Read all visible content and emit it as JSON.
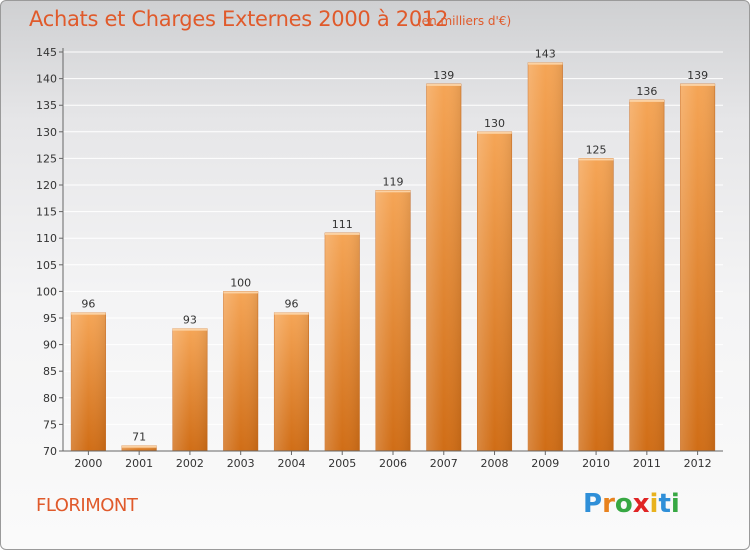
{
  "title": "Achats et Charges Externes 2000 à 2012",
  "subtitle": "(en milliers d'€)",
  "commune": "FLORIMONT",
  "logo": {
    "letters": [
      "P",
      "r",
      "o",
      "x",
      "i",
      "t",
      "i"
    ],
    "colors": [
      "#2f8fd8",
      "#e8821e",
      "#37a843",
      "#e02424",
      "#e8b21e",
      "#2f8fd8",
      "#37a843"
    ]
  },
  "colors": {
    "accent": "#e05a2b",
    "bar_top": "#f5a556",
    "bar_bottom": "#d06d16"
  },
  "chart_data": {
    "type": "bar",
    "categories": [
      "2000",
      "2001",
      "2002",
      "2003",
      "2004",
      "2005",
      "2006",
      "2007",
      "2008",
      "2009",
      "2010",
      "2011",
      "2012"
    ],
    "values": [
      96,
      71,
      93,
      100,
      96,
      111,
      119,
      139,
      130,
      143,
      125,
      136,
      139
    ],
    "ylim": [
      70,
      145
    ],
    "yticks": [
      70,
      75,
      80,
      85,
      90,
      95,
      100,
      105,
      110,
      115,
      120,
      125,
      130,
      135,
      140,
      145
    ],
    "grid": true,
    "legend": "none"
  }
}
